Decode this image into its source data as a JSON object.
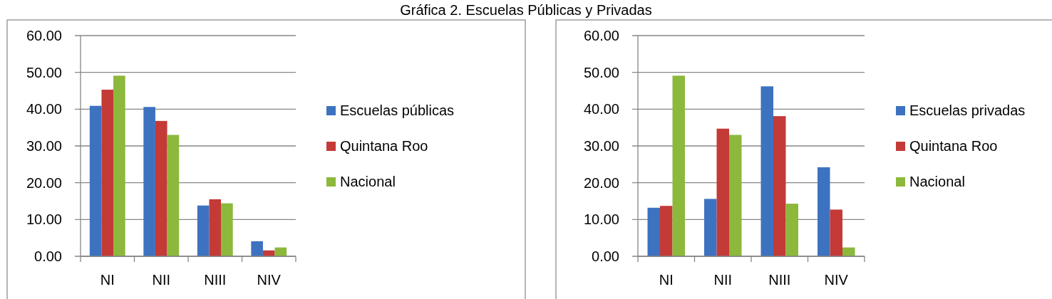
{
  "chart_data": [
    {
      "type": "other",
      "title": "Gráfica 2. Escuelas Públicas y Privadas"
    },
    {
      "type": "bar",
      "categories": [
        "NI",
        "NII",
        "NIII",
        "NIV"
      ],
      "series": [
        {
          "name": "Escuelas públicas",
          "color": "#3d72c0",
          "values": [
            40.9,
            40.6,
            13.8,
            4.1
          ]
        },
        {
          "name": "Quintana Roo",
          "color": "#c43a37",
          "values": [
            45.3,
            36.8,
            15.5,
            1.6
          ]
        },
        {
          "name": "Nacional",
          "color": "#8cb83c",
          "values": [
            49.1,
            33.0,
            14.4,
            2.4
          ]
        }
      ],
      "ylim": [
        0,
        60
      ],
      "yticks": [
        {
          "value": 0,
          "label": "0.00"
        },
        {
          "value": 10,
          "label": "10.00"
        },
        {
          "value": 20,
          "label": "20.00"
        },
        {
          "value": 30,
          "label": "30.00"
        },
        {
          "value": 40,
          "label": "40.00"
        },
        {
          "value": 50,
          "label": "50.00"
        },
        {
          "value": 60,
          "label": "60.00"
        }
      ],
      "grid": "y",
      "legend": "right"
    },
    {
      "type": "bar",
      "categories": [
        "NI",
        "NII",
        "NIII",
        "NIV"
      ],
      "series": [
        {
          "name": "Escuelas privadas",
          "color": "#3d72c0",
          "values": [
            13.2,
            15.6,
            46.2,
            24.2
          ]
        },
        {
          "name": "Quintana Roo",
          "color": "#c43a37",
          "values": [
            13.7,
            34.7,
            38.1,
            12.7
          ]
        },
        {
          "name": "Nacional",
          "color": "#8cb83c",
          "values": [
            49.1,
            33.0,
            14.3,
            2.4
          ]
        }
      ],
      "ylim": [
        0,
        60
      ],
      "yticks": [
        {
          "value": 0,
          "label": "0.00"
        },
        {
          "value": 10,
          "label": "10.00"
        },
        {
          "value": 20,
          "label": "20.00"
        },
        {
          "value": 30,
          "label": "30.00"
        },
        {
          "value": 40,
          "label": "40.00"
        },
        {
          "value": 50,
          "label": "50.00"
        },
        {
          "value": 60,
          "label": "60.00"
        }
      ],
      "grid": "y",
      "legend": "right"
    }
  ]
}
